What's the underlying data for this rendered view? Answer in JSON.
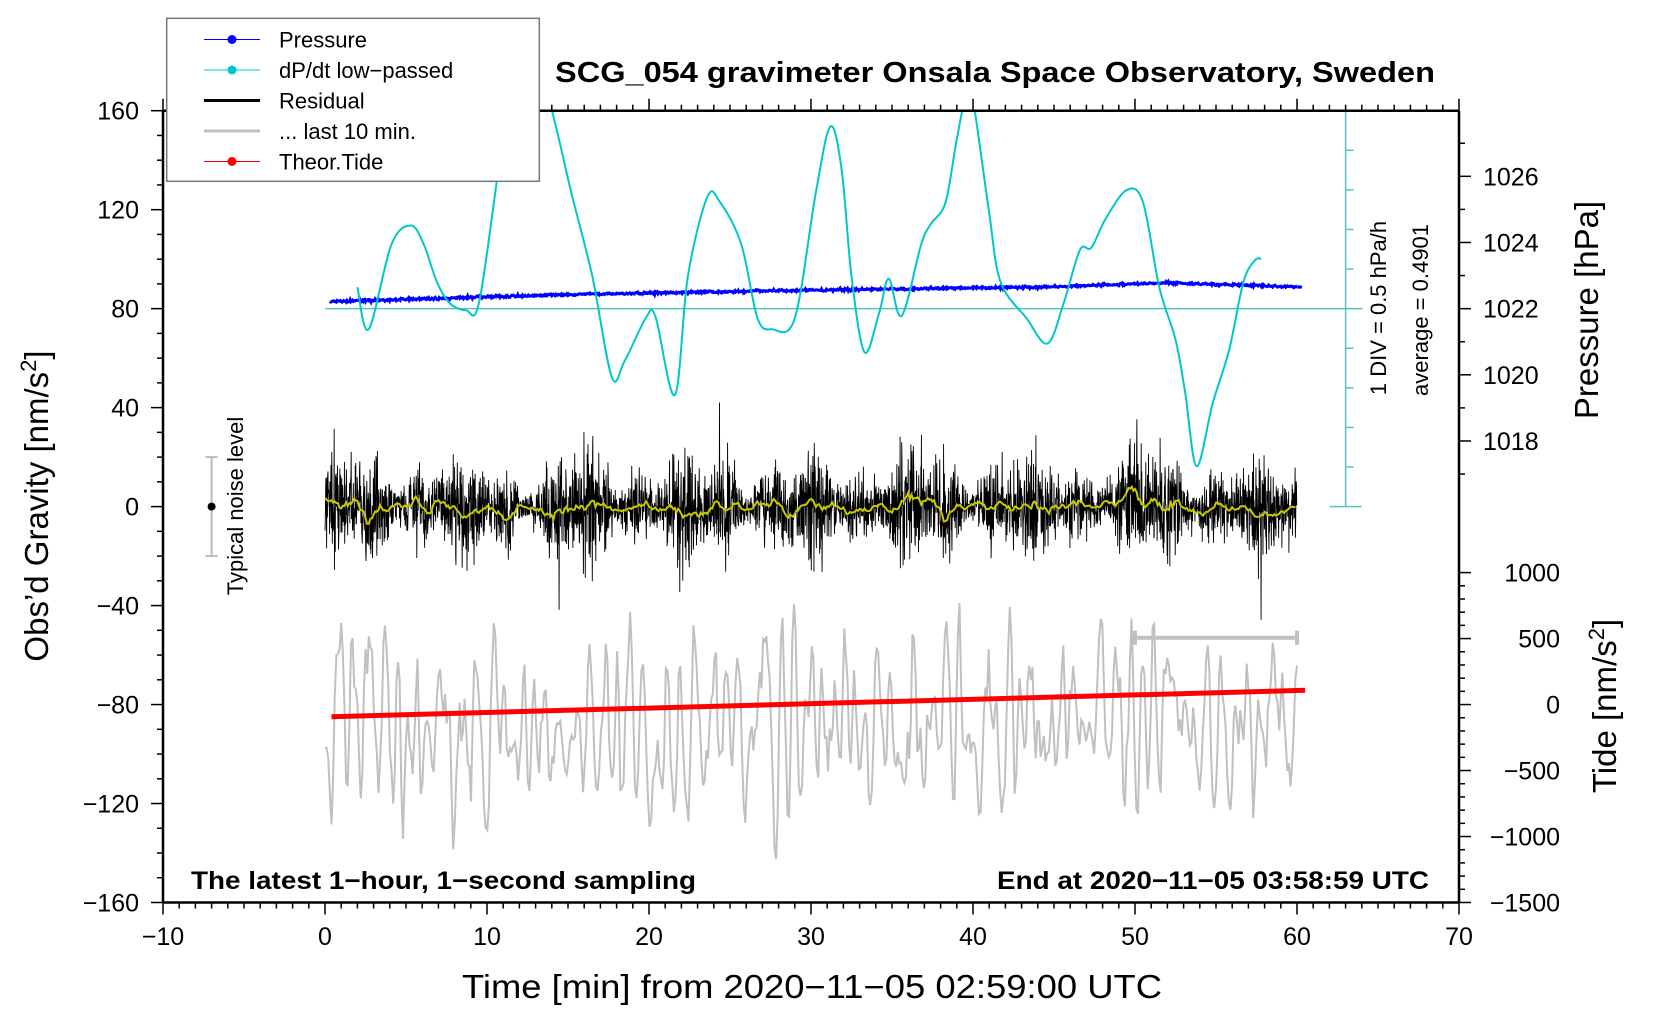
{
  "chart_data": {
    "type": "line",
    "title": "SCG_054 gravimeter Onsala Space Observatory, Sweden",
    "xlabel": "Time [min] from 2020−11−05 02:59:00 UTC",
    "ylabel_left": "Obs’d Gravity [nm/s",
    "ylabel_left_sup": "2",
    "ylabel_left_end": "]",
    "ylabel_right_top": "Pressure [hPa]",
    "ylabel_right_bottom": "Tide [nm/s",
    "ylabel_right_bottom_sup": "2",
    "ylabel_right_bottom_end": "]",
    "xlim": [
      -10,
      70
    ],
    "ylim": [
      -160,
      160
    ],
    "x_ticks": [
      "−10",
      "0",
      "10",
      "20",
      "30",
      "40",
      "50",
      "60",
      "70"
    ],
    "x_tick_values": [
      -10,
      0,
      10,
      20,
      30,
      40,
      50,
      60,
      70
    ],
    "y_ticks": [
      "160",
      "120",
      "80",
      "40",
      "0",
      "−40",
      "−80",
      "−120",
      "−160"
    ],
    "y_tick_values": [
      160,
      120,
      80,
      40,
      0,
      -40,
      -80,
      -120,
      -160
    ],
    "pressure_axis": {
      "ticks": [
        "1026",
        "1024",
        "1022",
        "1020",
        "1018"
      ],
      "tick_values": [
        1026,
        1024,
        1022,
        1020,
        1018
      ],
      "ref_hpa": 1022,
      "ref_gravity": 80,
      "gravity_per_hpa": 13.37
    },
    "tide_axis": {
      "ticks": [
        "1000",
        "500",
        "0",
        "−500",
        "−1000",
        "−1500"
      ],
      "tick_values": [
        1000,
        500,
        0,
        -500,
        -1000,
        -1500
      ],
      "zero_at_gravity": -80,
      "tide_per_gravity_unit": 18.75
    },
    "dpdt_scale": {
      "div_label": "1 DIV = 0.5 hPa/h",
      "average_label": "average = 0.4901",
      "hpa_per_div": 0.5,
      "average": 0.4901,
      "gravity_per_div": 16,
      "center_gravity": 80
    },
    "legend": {
      "placement": "top-left",
      "items": [
        {
          "label": "Pressure",
          "color": "#0000ff",
          "marker": true
        },
        {
          "label": "dP/dt low−passed",
          "color": "#00c8c8",
          "marker": true
        },
        {
          "label": "Residual",
          "color": "#000000",
          "marker": false
        },
        {
          "label": "... last 10 min.",
          "color": "#c0c0c0",
          "marker": false
        },
        {
          "label": "Theor.Tide",
          "color": "#ff0000",
          "marker": true
        }
      ]
    },
    "series": [
      {
        "name": "Pressure",
        "unit": "hPa",
        "color": "#0000ff",
        "x": [
          0.3,
          15,
          30,
          45,
          52,
          60.3
        ],
        "y": [
          1022.21,
          1022.43,
          1022.56,
          1022.66,
          1022.78,
          1022.65
        ]
      },
      {
        "name": "dP/dt low-passed",
        "unit": "hPa/h",
        "color": "#00c8c8",
        "x": [
          2.0,
          2.7,
          4.1,
          5.3,
          6.1,
          6.9,
          7.7,
          8.7,
          9.5,
          10.7,
          11.6,
          12.8,
          14.0,
          15.2,
          16.5,
          17.7,
          18.5,
          19.8,
          20.4,
          21.6,
          22.4,
          23.6,
          24.4,
          25.7,
          26.7,
          27.6,
          29.0,
          30.3,
          31.2,
          31.9,
          32.5,
          33.3,
          34.2,
          34.8,
          35.6,
          36.8,
          37.4,
          38.3,
          39.0,
          39.7,
          40.1,
          41.0,
          41.7,
          43.3,
          44.6,
          45.6,
          46.6,
          47.3,
          48.2,
          49.5,
          50.5,
          51.5,
          52.5,
          53.1,
          53.8,
          54.8,
          55.8,
          56.7,
          57.4,
          57.8
        ],
        "y": [
          0.76,
          0.23,
          1.3,
          1.54,
          1.3,
          0.83,
          0.56,
          0.47,
          0.56,
          2.23,
          3.4,
          3.8,
          3.0,
          1.96,
          0.9,
          -0.37,
          -0.17,
          0.37,
          0.39,
          -0.6,
          0.9,
          1.9,
          1.83,
          1.3,
          0.37,
          0.23,
          0.37,
          1.96,
          2.79,
          2.23,
          0.9,
          -0.06,
          0.43,
          0.87,
          0.4,
          1.3,
          1.56,
          1.83,
          2.63,
          3.3,
          3.0,
          1.7,
          0.83,
          0.37,
          0.05,
          0.56,
          1.23,
          1.26,
          1.63,
          1.99,
          1.83,
          0.76,
          0.1,
          -0.57,
          -1.5,
          -0.7,
          -0.04,
          0.83,
          1.1,
          1.12
        ]
      },
      {
        "name": "Residual",
        "unit": "nm/s2",
        "color": "#000000",
        "x_range": [
          0,
          60
        ],
        "sampling_s": 1,
        "mean": 0,
        "typical_amplitude": 14,
        "peak_amplitude": 48
      },
      {
        "name": "Residual smoothed",
        "unit": "nm/s2",
        "color": "#c8c800",
        "x_range": [
          0,
          60
        ],
        "mean": 0,
        "typical_amplitude": 2
      },
      {
        "name": "... last 10 min.",
        "unit": "nm/s2",
        "color": "#c0c0c0",
        "x_range": [
          0,
          60
        ],
        "offset": -80,
        "typical_amplitude": 20,
        "span_marker_minutes": [
          50,
          60
        ],
        "span_marker_gravity": -53
      },
      {
        "name": "Theor.Tide",
        "unit": "nm/s2",
        "color": "#ff0000",
        "x": [
          0.4,
          60.5
        ],
        "y": [
          -92,
          108
        ]
      }
    ],
    "noise_bar": {
      "label": "Typical noise level",
      "x": -7,
      "center": 0,
      "half_range": 20
    },
    "annotations": {
      "left": "The latest 1−hour, 1−second sampling",
      "right": "End at 2020−11−05 03:58:59 UTC"
    },
    "grid": false
  }
}
